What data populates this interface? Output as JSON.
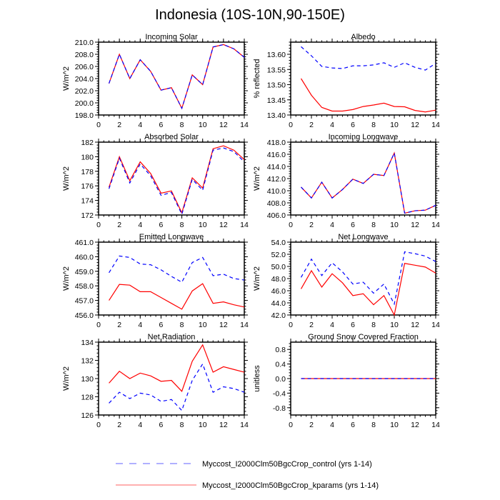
{
  "chart_data": {
    "title": "Indonesia (10S-10N,90-150E)",
    "legend": [
      {
        "name": "Myccost_I2000Clm50BgcCrop_control (yrs 1-14)",
        "color": "#0000ff",
        "style": "dashed"
      },
      {
        "name": "Myccost_I2000Clm50BgcCrop_kparams (yrs 1-14)",
        "color": "#ff0000",
        "style": "solid"
      }
    ],
    "x": [
      1,
      2,
      3,
      4,
      5,
      6,
      7,
      8,
      9,
      10,
      11,
      12,
      13,
      14
    ],
    "xlim": [
      0,
      14
    ],
    "xticks": [
      "0",
      "2",
      "4",
      "6",
      "8",
      "10",
      "12",
      "14"
    ],
    "panels": [
      {
        "type": "line",
        "title": "Incoming Solar",
        "ylabel": "W/m^2",
        "ylim": [
          198,
          210
        ],
        "yticks": [
          "198.0",
          "200.0",
          "202.0",
          "204.0",
          "206.0",
          "208.0",
          "210.0"
        ],
        "series": [
          {
            "name": "kparams",
            "values": [
              203.2,
              208.0,
              204.0,
              207.1,
              205.2,
              202.1,
              202.5,
              199.1,
              204.6,
              203.0,
              209.2,
              209.6,
              208.9,
              207.5
            ]
          },
          {
            "name": "control",
            "values": [
              203.2,
              208.0,
              204.0,
              207.1,
              205.2,
              202.1,
              202.5,
              199.1,
              204.6,
              203.0,
              209.2,
              209.6,
              208.9,
              207.5
            ]
          }
        ]
      },
      {
        "type": "line",
        "title": "Albedo",
        "ylabel": "% reflected",
        "ylim": [
          13.4,
          13.64
        ],
        "yticks": [
          "13.40",
          "13.45",
          "13.50",
          "13.55",
          "13.60"
        ],
        "series": [
          {
            "name": "kparams",
            "values": [
              13.52,
              13.465,
              13.425,
              13.413,
              13.413,
              13.418,
              13.428,
              13.433,
              13.439,
              13.428,
              13.427,
              13.415,
              13.41,
              13.416
            ]
          },
          {
            "name": "control",
            "values": [
              13.625,
              13.595,
              13.56,
              13.555,
              13.553,
              13.562,
              13.562,
              13.565,
              13.572,
              13.557,
              13.572,
              13.557,
              13.548,
              13.57
            ]
          }
        ]
      },
      {
        "type": "line",
        "title": "Absorbed Solar",
        "ylabel": "W/m^2",
        "ylim": [
          172,
          182
        ],
        "yticks": [
          "172",
          "174",
          "176",
          "178",
          "180",
          "182"
        ],
        "series": [
          {
            "name": "kparams",
            "values": [
              175.8,
              180.0,
              176.7,
              179.3,
              177.7,
              175.0,
              175.3,
              172.3,
              177.1,
              175.7,
              181.1,
              181.5,
              180.9,
              179.6
            ]
          },
          {
            "name": "control",
            "values": [
              175.6,
              179.8,
              176.4,
              179.0,
              177.4,
              174.7,
              175.1,
              172.1,
              176.9,
              175.4,
              180.9,
              181.2,
              180.7,
              179.3
            ]
          }
        ]
      },
      {
        "type": "line",
        "title": "Incoming Longwave",
        "ylabel": "W/m^2",
        "ylim": [
          406,
          418
        ],
        "yticks": [
          "406.0",
          "408.0",
          "410.0",
          "412.0",
          "414.0",
          "416.0",
          "418.0"
        ],
        "series": [
          {
            "name": "kparams",
            "values": [
              410.6,
              408.8,
              411.4,
              408.8,
              410.2,
              411.9,
              411.2,
              412.7,
              412.5,
              416.2,
              406.3,
              406.7,
              406.8,
              407.6
            ]
          },
          {
            "name": "control",
            "values": [
              410.6,
              408.8,
              411.4,
              408.8,
              410.2,
              411.9,
              411.2,
              412.7,
              412.5,
              416.2,
              406.3,
              406.7,
              406.8,
              407.6
            ]
          }
        ]
      },
      {
        "type": "line",
        "title": "Emitted Longwave",
        "ylabel": "W/m^2",
        "ylim": [
          456,
          461
        ],
        "yticks": [
          "456.0",
          "457.0",
          "458.0",
          "459.0",
          "460.0",
          "461.0"
        ],
        "series": [
          {
            "name": "kparams",
            "values": [
              457.0,
              458.1,
              458.05,
              457.6,
              457.6,
              457.2,
              456.8,
              456.4,
              457.65,
              458.15,
              456.8,
              456.9,
              456.7,
              456.55
            ]
          },
          {
            "name": "control",
            "values": [
              458.9,
              460.05,
              459.95,
              459.5,
              459.45,
              459.1,
              458.65,
              458.25,
              459.6,
              459.95,
              458.7,
              458.8,
              458.5,
              458.4
            ]
          }
        ]
      },
      {
        "type": "line",
        "title": "Net Longwave",
        "ylabel": "W/m^2",
        "ylim": [
          42,
          54
        ],
        "yticks": [
          "42.0",
          "44.0",
          "46.0",
          "48.0",
          "50.0",
          "52.0",
          "54.0"
        ],
        "series": [
          {
            "name": "kparams",
            "values": [
              46.3,
              49.3,
              46.6,
              48.8,
              47.3,
              45.2,
              45.5,
              43.7,
              45.2,
              42.0,
              50.5,
              50.2,
              49.9,
              48.9
            ]
          },
          {
            "name": "control",
            "values": [
              48.2,
              51.2,
              48.5,
              50.6,
              49.1,
              47.1,
              47.4,
              45.6,
              47.1,
              43.8,
              52.4,
              52.1,
              51.7,
              50.8
            ]
          }
        ]
      },
      {
        "type": "line",
        "title": "Net Radiation",
        "ylabel": "W/m^2",
        "ylim": [
          126,
          134
        ],
        "yticks": [
          "126",
          "128",
          "130",
          "132",
          "134"
        ],
        "series": [
          {
            "name": "kparams",
            "values": [
              129.5,
              130.8,
              130.0,
              130.6,
              130.3,
              129.7,
              129.8,
              128.6,
              131.9,
              133.7,
              130.7,
              131.3,
              131.0,
              130.7
            ]
          },
          {
            "name": "control",
            "values": [
              127.3,
              128.5,
              127.8,
              128.4,
              128.2,
              127.5,
              127.7,
              126.5,
              129.8,
              131.6,
              128.5,
              129.1,
              128.9,
              128.5
            ]
          }
        ]
      },
      {
        "type": "line",
        "title": "Ground Snow Covered Fraction",
        "ylabel": "unitless",
        "ylim": [
          -1,
          1
        ],
        "yticks": [
          "-0.8",
          "-0.4",
          "0.0",
          "0.4",
          "0.8"
        ],
        "series": [
          {
            "name": "kparams",
            "values": [
              0,
              0,
              0,
              0,
              0,
              0,
              0,
              0,
              0,
              0,
              0,
              0,
              0,
              0
            ]
          },
          {
            "name": "control",
            "values": [
              0,
              0,
              0,
              0,
              0,
              0,
              0,
              0,
              0,
              0,
              0,
              0,
              0,
              0
            ]
          }
        ]
      }
    ]
  }
}
